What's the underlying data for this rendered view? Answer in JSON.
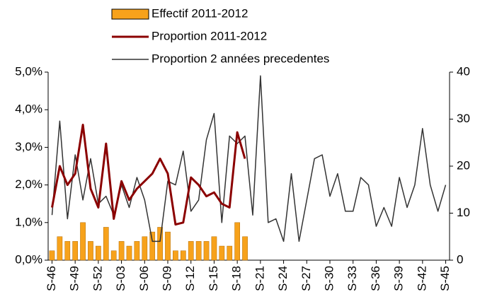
{
  "chart_data": {
    "type": "combo",
    "categories": [
      "S-46",
      null,
      null,
      "S-49",
      null,
      null,
      "S-52",
      null,
      null,
      "S-03",
      null,
      null,
      "S-06",
      null,
      null,
      "S-09",
      null,
      null,
      "S-12",
      null,
      null,
      "S-15",
      null,
      null,
      "S-18",
      null,
      null,
      "S-21",
      null,
      null,
      "S-24",
      null,
      null,
      "S-27",
      null,
      null,
      "S-30",
      null,
      null,
      "S-33",
      null,
      null,
      "S-36",
      null,
      null,
      "S-39",
      null,
      null,
      "S-42",
      null,
      null,
      "S-45"
    ],
    "ylim": [
      0,
      5
    ],
    "yticks": [
      {
        "value": 0,
        "label": "0,0%"
      },
      {
        "value": 1,
        "label": "1,0%"
      },
      {
        "value": 2,
        "label": "2,0%"
      },
      {
        "value": 3,
        "label": "3,0%"
      },
      {
        "value": 4,
        "label": "4,0%"
      },
      {
        "value": 5,
        "label": "5,0%"
      }
    ],
    "y2lim": [
      0,
      40
    ],
    "y2ticks": [
      0,
      10,
      20,
      30,
      40
    ],
    "grid": false,
    "legend": "top",
    "series": [
      {
        "name": "Effectif 2011-2012",
        "type": "bar",
        "axis": "y2",
        "color": "#f7a21b",
        "values": [
          2,
          5,
          4,
          4,
          8,
          4,
          3,
          7,
          2,
          4,
          3,
          4,
          5,
          6,
          7,
          6,
          2,
          2,
          4,
          4,
          4,
          5,
          3,
          3,
          8,
          5,
          null,
          null,
          null,
          null,
          null,
          null,
          null,
          null,
          null,
          null,
          null,
          null,
          null,
          null,
          null,
          null,
          null,
          null,
          null,
          null,
          null,
          null,
          null,
          null,
          null,
          null
        ]
      },
      {
        "name": "Proportion 2011-2012",
        "type": "line",
        "color": "#8b0000",
        "values": [
          1.4,
          2.5,
          2.0,
          2.3,
          3.6,
          1.9,
          1.4,
          3.1,
          1.1,
          2.1,
          1.6,
          1.9,
          2.1,
          2.3,
          2.7,
          2.3,
          0.95,
          1.0,
          2.2,
          2.0,
          1.7,
          1.8,
          1.5,
          1.4,
          3.4,
          2.7,
          null,
          null,
          null,
          null,
          null,
          null,
          null,
          null,
          null,
          null,
          null,
          null,
          null,
          null,
          null,
          null,
          null,
          null,
          null,
          null,
          null,
          null,
          null,
          null,
          null,
          null
        ]
      },
      {
        "name": "Proportion 2 années precedentes",
        "type": "line",
        "color": "#333333",
        "values": [
          1.2,
          3.7,
          1.1,
          2.8,
          1.6,
          2.7,
          1.5,
          1.7,
          1.2,
          2.0,
          1.4,
          2.2,
          1.6,
          0.5,
          0.5,
          2.1,
          2.0,
          2.9,
          1.3,
          1.6,
          3.2,
          3.9,
          1.0,
          3.3,
          3.1,
          3.3,
          1.2,
          4.9,
          1.0,
          1.1,
          0.5,
          2.3,
          0.5,
          1.6,
          2.7,
          2.8,
          1.7,
          2.3,
          1.3,
          1.3,
          2.2,
          2.0,
          0.9,
          1.4,
          0.9,
          2.2,
          1.4,
          2.0,
          3.5,
          2.0,
          1.3,
          2.0
        ]
      }
    ]
  }
}
